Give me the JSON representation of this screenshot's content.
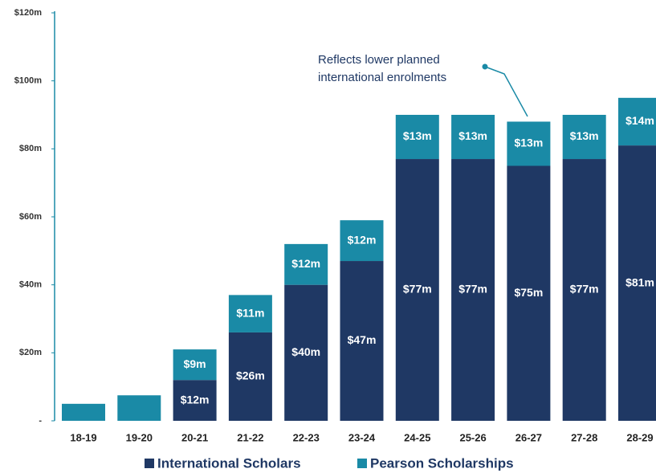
{
  "chart_data": {
    "type": "stacked_bar",
    "categories": [
      "18-19",
      "19-20",
      "20-21",
      "21-22",
      "22-23",
      "23-24",
      "24-25",
      "25-26",
      "26-27",
      "27-28",
      "28-29"
    ],
    "series": [
      {
        "name": "International Scholars",
        "color": "#1f3864",
        "values": [
          null,
          null,
          12,
          26,
          40,
          47,
          77,
          77,
          75,
          77,
          81
        ],
        "value_labels": [
          null,
          null,
          "$12m",
          "$26m",
          "$40m",
          "$47m",
          "$77m",
          "$77m",
          "$75m",
          "$77m",
          "$81m"
        ]
      },
      {
        "name": "Pearson Scholarships",
        "color": "#1a8aa6",
        "values": [
          5,
          7.5,
          9,
          11,
          12,
          12,
          13,
          13,
          13,
          13,
          14
        ],
        "value_labels": [
          null,
          null,
          "$9m",
          "$11m",
          "$12m",
          "$12m",
          "$13m",
          "$13m",
          "$13m",
          "$13m",
          "$14m"
        ]
      }
    ],
    "ylim": [
      0,
      120
    ],
    "yticks": [
      {
        "value": 0,
        "label": "-"
      },
      {
        "value": 20,
        "label": "$20m"
      },
      {
        "value": 40,
        "label": "$40m"
      },
      {
        "value": 60,
        "label": "$60m"
      },
      {
        "value": 80,
        "label": "$80m"
      },
      {
        "value": 100,
        "label": "$100m"
      },
      {
        "value": 120,
        "label": "$120m"
      }
    ],
    "annotation": [
      "Reflects lower planned",
      "international enrolments"
    ],
    "legend": "bottom"
  }
}
